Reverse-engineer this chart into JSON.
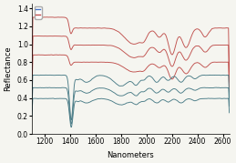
{
  "xlim": [
    1100,
    2650
  ],
  "ylim": [
    0.0,
    1.45
  ],
  "xlabel": "Nanometers",
  "ylabel": "Reflectance",
  "xticks": [
    1200,
    1400,
    1600,
    1800,
    2000,
    2200,
    2400,
    2600
  ],
  "yticks": [
    0.0,
    0.2,
    0.4,
    0.6,
    0.8,
    1.0,
    1.2,
    1.4
  ],
  "red_color": "#c0504d",
  "blue_color": "#4a7c87",
  "legend_blue": "#4472c4",
  "legend_red": "#c0504d",
  "bg_color": "#f5f5f0",
  "axis_fontsize": 6,
  "tick_fontsize": 5.5
}
